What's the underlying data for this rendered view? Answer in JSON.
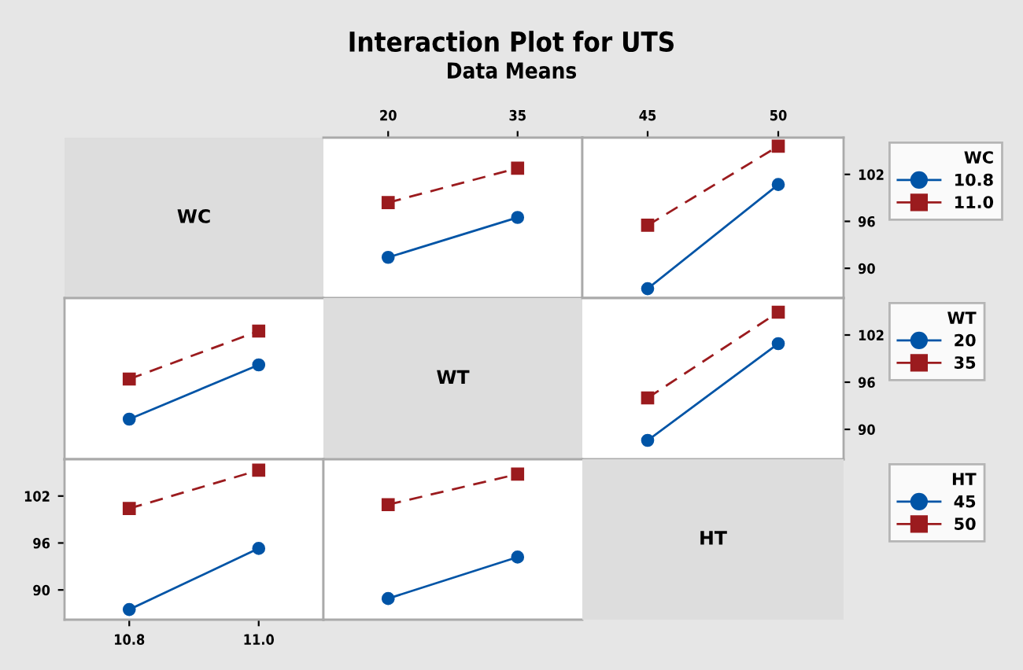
{
  "chart_data": [
    {
      "type": "other",
      "title": "Interaction Plot for UTS",
      "subtitle": "Data Means",
      "annotations": [
        "WC"
      ]
    },
    {
      "type": "line",
      "x": [
        20,
        35
      ],
      "xlim": [
        12.5,
        42.5
      ],
      "xticks": [
        20,
        35
      ],
      "ylim": [
        86.2,
        106.7
      ],
      "yticks": [
        90,
        96,
        102
      ],
      "tick_labels": "x",
      "legend": "right",
      "legend_title": "WC",
      "series": [
        {
          "name": "10.8",
          "color": "#0054a6",
          "marker": "circle",
          "line_style": "solid",
          "values": [
            91.4,
            96.5
          ]
        },
        {
          "name": "11.0",
          "color": "#9b1b1e",
          "marker": "square",
          "line_style": "dashed",
          "values": [
            98.4,
            102.8
          ]
        }
      ]
    },
    {
      "type": "line",
      "x": [
        45,
        50
      ],
      "xlim": [
        42.5,
        52.5
      ],
      "xticks": [
        45,
        50
      ],
      "ylim": [
        86.2,
        106.7
      ],
      "yticks": [
        90,
        96,
        102
      ],
      "series": [
        {
          "color": "#0054a6",
          "marker": "circle",
          "line_style": "solid",
          "values": [
            87.4,
            100.7
          ]
        },
        {
          "color": "#9b1b1e",
          "marker": "square",
          "line_style": "dashed",
          "values": [
            95.5,
            105.6
          ]
        }
      ]
    },
    {
      "type": "line",
      "x": [
        10.8,
        11.0
      ],
      "xlim": [
        10.7,
        11.1
      ],
      "ylim": [
        86.2,
        106.7
      ],
      "tick_labels": false,
      "legend": "right",
      "legend_title": "WT",
      "series": [
        {
          "name": "20",
          "color": "#0054a6",
          "marker": "circle",
          "line_style": "solid",
          "values": [
            91.3,
            98.2
          ]
        },
        {
          "name": "35",
          "color": "#9b1b1e",
          "marker": "square",
          "line_style": "dashed",
          "values": [
            96.4,
            102.5
          ]
        }
      ]
    },
    {
      "type": "other",
      "annotations": [
        "WT"
      ]
    },
    {
      "type": "line",
      "x": [
        45,
        50
      ],
      "xlim": [
        42.5,
        52.5
      ],
      "xticks": [
        45,
        50
      ],
      "ylim": [
        86.2,
        106.7
      ],
      "yticks": [
        90,
        96,
        102
      ],
      "tick_labels": "y",
      "series": [
        {
          "color": "#0054a6",
          "marker": "circle",
          "line_style": "solid",
          "values": [
            88.6,
            100.9
          ]
        },
        {
          "color": "#9b1b1e",
          "marker": "square",
          "line_style": "dashed",
          "values": [
            94.0,
            104.9
          ]
        }
      ]
    },
    {
      "type": "line",
      "x": [
        10.8,
        11.0
      ],
      "xlim": [
        10.7,
        11.1
      ],
      "xticks": [
        {
          "value": 10.8,
          "label": "10.8"
        },
        {
          "value": 11.0,
          "label": "11.0"
        }
      ],
      "ylim": [
        86.2,
        106.7
      ],
      "yticks": [
        90,
        96,
        102
      ],
      "legend": "right",
      "legend_title": "HT",
      "series": [
        {
          "name": "45",
          "color": "#0054a6",
          "marker": "circle",
          "line_style": "solid",
          "values": [
            87.5,
            95.3
          ]
        },
        {
          "name": "50",
          "color": "#9b1b1e",
          "marker": "square",
          "line_style": "dashed",
          "values": [
            100.4,
            105.3
          ]
        }
      ]
    },
    {
      "type": "line",
      "x": [
        20,
        35
      ],
      "xlim": [
        12.5,
        42.5
      ],
      "ylim": [
        86.2,
        106.7
      ],
      "tick_labels": false,
      "series": [
        {
          "color": "#0054a6",
          "marker": "circle",
          "line_style": "solid",
          "values": [
            88.9,
            94.2
          ]
        },
        {
          "color": "#9b1b1e",
          "marker": "square",
          "line_style": "dashed",
          "values": [
            100.9,
            104.8
          ]
        }
      ]
    },
    {
      "type": "other",
      "annotations": [
        "HT"
      ]
    }
  ]
}
